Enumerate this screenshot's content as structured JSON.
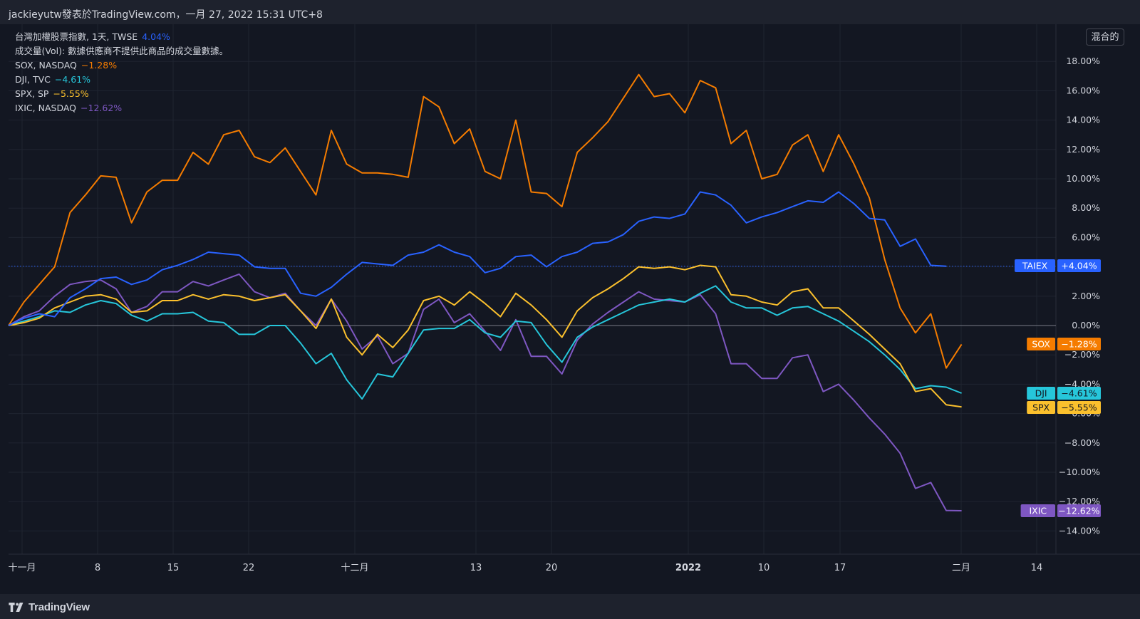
{
  "header": {
    "attribution": "jackieyutw發表於TradingView.com，一月 27, 2022 15:31 UTC+8"
  },
  "legend": [
    {
      "label": "台灣加權股票指數, 1天, TWSE",
      "change": "4.04%",
      "color": "#2962ff"
    },
    {
      "label": "成交量(Vol): 數據供應商不提供此商品的成交量數據。",
      "change": "",
      "color": "#d1d4dc"
    },
    {
      "label": "SOX, NASDAQ",
      "change": "−1.28%",
      "color": "#f57c00"
    },
    {
      "label": "DJI, TVC",
      "change": "−4.61%",
      "color": "#26c6da"
    },
    {
      "label": "SPX, SP",
      "change": "−5.55%",
      "color": "#fbc02d"
    },
    {
      "label": "IXIC, NASDAQ",
      "change": "−12.62%",
      "color": "#7e57c2"
    }
  ],
  "scale_button": "混合的",
  "footer": {
    "brand": "TradingView"
  },
  "colors": {
    "background": "#131722",
    "grid": "#1f2430",
    "zero_line": "#787b86"
  },
  "chart_data": {
    "type": "line",
    "y_unit": "%",
    "ylim": [
      -15.5,
      19.5
    ],
    "y_ticks": [
      "18.00%",
      "16.00%",
      "14.00%",
      "12.00%",
      "10.00%",
      "8.00%",
      "6.00%",
      "4.00%",
      "2.00%",
      "0.00%",
      "−2.00%",
      "−4.00%",
      "−6.00%",
      "−8.00%",
      "−10.00%",
      "−12.00%",
      "−14.00%"
    ],
    "x_tick_labels": [
      "十一月",
      "8",
      "15",
      "22",
      "十二月",
      "13",
      "20",
      "2022",
      "10",
      "17",
      "二月",
      "14"
    ],
    "grid": true,
    "series": [
      {
        "name": "TAIEX",
        "badge": "+4.04%",
        "color": "#2962ff",
        "values": [
          0,
          0.5,
          0.8,
          0.6,
          1.9,
          2.5,
          3.2,
          3.3,
          2.8,
          3.1,
          3.8,
          4.1,
          4.5,
          5.0,
          4.9,
          4.8,
          4.0,
          3.9,
          3.9,
          2.2,
          2.0,
          2.6,
          3.5,
          4.3,
          4.2,
          4.1,
          4.8,
          5.0,
          5.5,
          5.0,
          4.7,
          3.6,
          3.9,
          4.7,
          4.8,
          4.0,
          4.7,
          5.0,
          5.6,
          5.7,
          6.2,
          7.1,
          7.4,
          7.3,
          7.6,
          9.1,
          8.9,
          8.2,
          7.0,
          7.4,
          7.7,
          8.1,
          8.5,
          8.4,
          9.1,
          8.3,
          7.3,
          7.2,
          5.4,
          5.9,
          4.1,
          4.04
        ]
      },
      {
        "name": "SOX",
        "badge": "−1.28%",
        "color": "#f57c00",
        "values": [
          0,
          1.6,
          2.8,
          4.0,
          7.7,
          8.9,
          10.2,
          10.1,
          7.0,
          9.1,
          9.9,
          9.9,
          11.8,
          11.0,
          13.0,
          13.3,
          11.5,
          11.1,
          12.1,
          10.5,
          8.9,
          13.3,
          11.0,
          10.4,
          10.4,
          10.3,
          10.1,
          15.6,
          14.9,
          12.4,
          13.4,
          10.5,
          10.0,
          14.0,
          9.1,
          9.0,
          8.1,
          11.8,
          12.8,
          13.9,
          15.5,
          17.1,
          15.6,
          15.8,
          14.5,
          16.7,
          16.2,
          12.4,
          13.3,
          10.0,
          10.3,
          12.3,
          13.0,
          10.5,
          13.0,
          11.0,
          8.7,
          4.5,
          1.2,
          -0.5,
          0.8,
          -2.9,
          -1.28
        ]
      },
      {
        "name": "DJI",
        "badge": "−4.61%",
        "color": "#26c6da",
        "values": [
          0,
          0.3,
          0.6,
          1.0,
          0.9,
          1.4,
          1.7,
          1.5,
          0.7,
          0.3,
          0.8,
          0.8,
          0.9,
          0.3,
          0.2,
          -0.6,
          -0.6,
          0.0,
          0.0,
          -1.2,
          -2.6,
          -1.9,
          -3.7,
          -5.0,
          -3.3,
          -3.5,
          -1.9,
          -0.3,
          -0.2,
          -0.2,
          0.4,
          -0.5,
          -0.8,
          0.3,
          0.2,
          -1.3,
          -2.5,
          -0.8,
          -0.1,
          0.4,
          0.9,
          1.4,
          1.6,
          1.8,
          1.6,
          2.2,
          2.7,
          1.6,
          1.2,
          1.2,
          0.7,
          1.2,
          1.3,
          0.8,
          0.3,
          -0.4,
          -1.1,
          -2.0,
          -3.0,
          -4.3,
          -4.1,
          -4.2,
          -4.61
        ]
      },
      {
        "name": "SPX",
        "badge": "−5.55%",
        "color": "#fbc02d",
        "values": [
          0,
          0.2,
          0.5,
          1.2,
          1.6,
          2.0,
          2.1,
          1.8,
          0.9,
          1.0,
          1.7,
          1.7,
          2.1,
          1.8,
          2.1,
          2.0,
          1.7,
          1.9,
          2.1,
          1.0,
          -0.2,
          1.8,
          -0.8,
          -2.0,
          -0.6,
          -1.5,
          -0.3,
          1.7,
          2.0,
          1.4,
          2.3,
          1.5,
          0.6,
          2.2,
          1.4,
          0.4,
          -0.8,
          1.0,
          1.9,
          2.5,
          3.2,
          4.0,
          3.9,
          4.0,
          3.8,
          4.1,
          4.0,
          2.1,
          2.0,
          1.6,
          1.4,
          2.3,
          2.5,
          1.2,
          1.2,
          0.3,
          -0.6,
          -1.6,
          -2.6,
          -4.5,
          -4.3,
          -5.4,
          -5.55
        ]
      },
      {
        "name": "IXIC",
        "badge": "−12.62%",
        "color": "#7e57c2",
        "values": [
          0,
          0.6,
          1.0,
          2.0,
          2.8,
          3.0,
          3.1,
          2.5,
          0.9,
          1.3,
          2.3,
          2.3,
          3.0,
          2.7,
          3.1,
          3.5,
          2.3,
          1.9,
          2.2,
          1.0,
          0.0,
          1.8,
          0.3,
          -1.6,
          -0.7,
          -2.6,
          -1.9,
          1.1,
          1.8,
          0.2,
          0.8,
          -0.4,
          -1.7,
          0.4,
          -2.1,
          -2.1,
          -3.3,
          -1.0,
          0.1,
          0.9,
          1.6,
          2.3,
          1.8,
          1.7,
          1.6,
          2.1,
          0.8,
          -2.6,
          -2.6,
          -3.6,
          -3.6,
          -2.2,
          -2.0,
          -4.5,
          -4.0,
          -5.1,
          -6.3,
          -7.4,
          -8.7,
          -11.1,
          -10.7,
          -12.6,
          -12.62
        ]
      }
    ]
  }
}
